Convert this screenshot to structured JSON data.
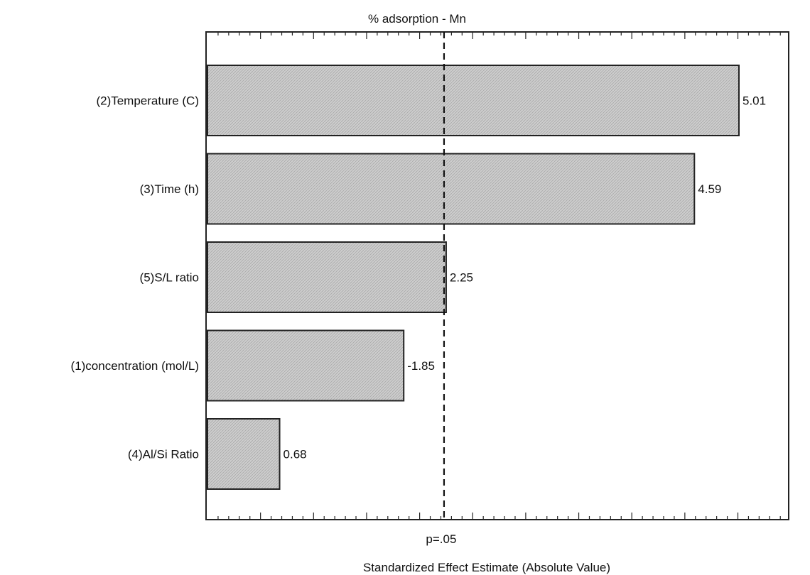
{
  "chart_data": {
    "type": "bar",
    "orientation": "horizontal",
    "title": "% adsorption - Mn",
    "xlabel": "Standardized Effect Estimate (Absolute Value)",
    "ylabel": "",
    "categories": [
      "(2)Temperature (C)",
      "(3)Time (h)",
      "(5)S/L ratio",
      "(1)concentration (mol/L)",
      "(4)Al/Si Ratio"
    ],
    "values": [
      5.01,
      4.59,
      2.25,
      1.85,
      0.68
    ],
    "data_labels": [
      "5.01",
      "4.59",
      "2.25",
      "-1.85",
      "0.68"
    ],
    "xlim": [
      0,
      5.5
    ],
    "reference_line": {
      "value": 2.23,
      "label": "p=.05",
      "style": "dashed"
    },
    "bar_fill": "#c8c8c8",
    "bar_stroke": "#222222",
    "grid": false
  }
}
